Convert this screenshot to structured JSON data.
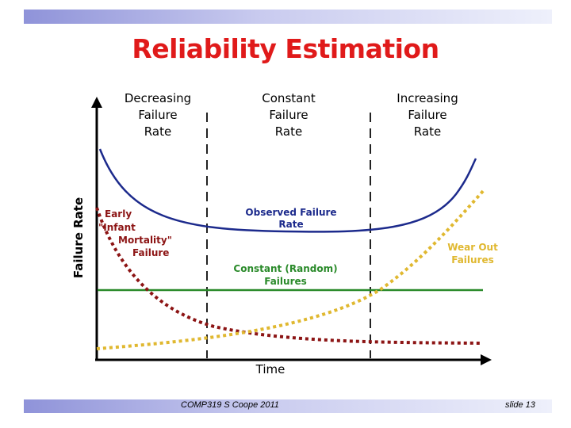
{
  "slide": {
    "title": "Reliability Estimation",
    "footer_center": "COMP319 S Coope 2011",
    "footer_right": "slide 13"
  },
  "diagram": {
    "y_axis_label": "Failure Rate",
    "x_axis_label": "Time",
    "regions": [
      {
        "lines": [
          "Decreasing",
          "Failure",
          "Rate"
        ]
      },
      {
        "lines": [
          "Constant",
          "Failure",
          "Rate"
        ]
      },
      {
        "lines": [
          "Increasing",
          "Failure",
          "Rate"
        ]
      }
    ],
    "labels": {
      "infant": [
        "Early",
        "\"Infant",
        "Mortality\"",
        "Failure"
      ],
      "observed": [
        "Observed Failure",
        "Rate"
      ],
      "constant": [
        "Constant (Random)",
        "Failures"
      ],
      "wearout": [
        "Wear Out",
        "Failures"
      ]
    },
    "colors": {
      "observed": "#1c2a8c",
      "infant": "#8c1414",
      "constant": "#2a8a2a",
      "wearout": "#e0b830",
      "axis": "#000000",
      "divider": "#222222"
    }
  }
}
